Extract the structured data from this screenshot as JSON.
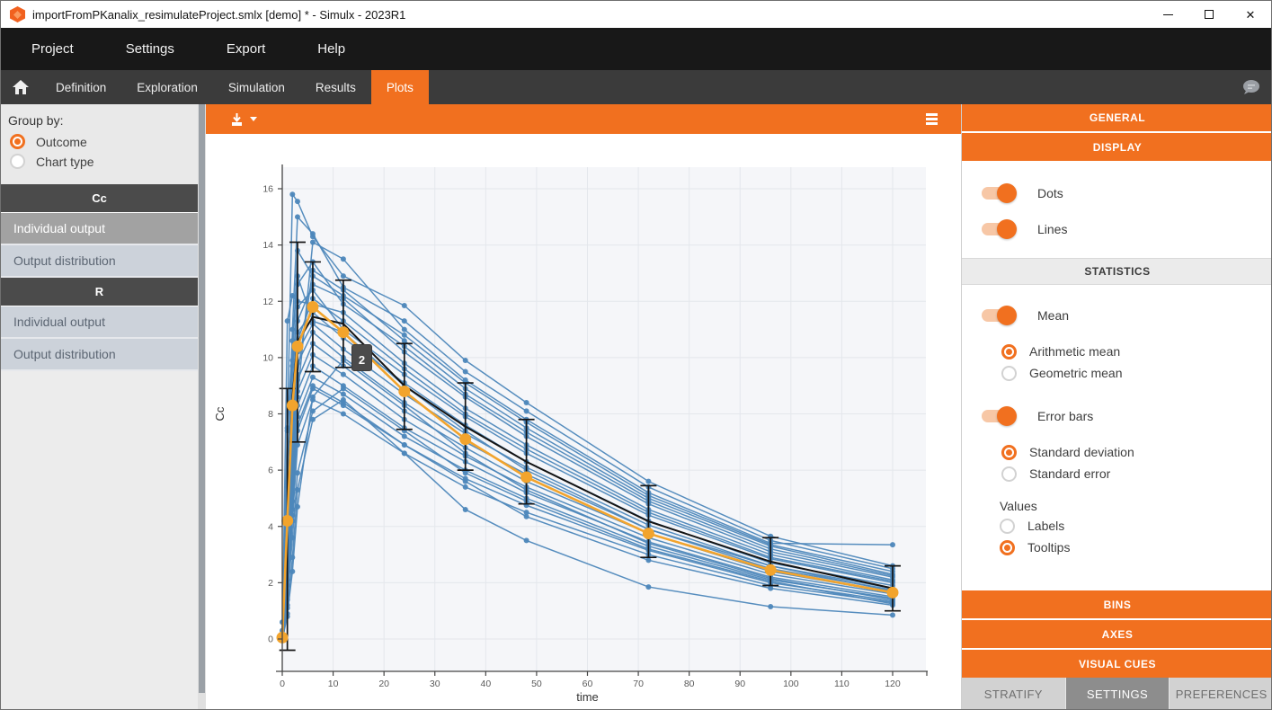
{
  "window": {
    "title": "importFromPKanalix_resimulateProject.smlx [demo] * - Simulx - 2023R1"
  },
  "menu": {
    "items": [
      {
        "label": "Project"
      },
      {
        "label": "Settings"
      },
      {
        "label": "Export"
      },
      {
        "label": "Help"
      }
    ]
  },
  "nav": {
    "tabs": [
      {
        "label": "Definition"
      },
      {
        "label": "Exploration"
      },
      {
        "label": "Simulation"
      },
      {
        "label": "Results"
      },
      {
        "label": "Plots",
        "active": true
      }
    ]
  },
  "left_sidebar": {
    "group_by": {
      "label": "Group by:",
      "options": [
        {
          "label": "Outcome",
          "selected": true
        },
        {
          "label": "Chart type",
          "selected": false
        }
      ]
    },
    "sections": [
      {
        "header": "Cc",
        "items": [
          {
            "label": "Individual output",
            "selected": true
          },
          {
            "label": "Output distribution",
            "selected": false
          }
        ]
      },
      {
        "header": "R",
        "items": [
          {
            "label": "Individual output",
            "selected": false
          },
          {
            "label": "Output distribution",
            "selected": false
          }
        ]
      }
    ]
  },
  "chart_data": {
    "type": "line",
    "title": "",
    "xlabel": "time",
    "ylabel": "Cc",
    "xlim": [
      -4.5,
      127
    ],
    "ylim": [
      -1.15,
      16.8
    ],
    "x_ticks": [
      0,
      10,
      20,
      30,
      40,
      50,
      60,
      70,
      80,
      90,
      100,
      110,
      120
    ],
    "y_ticks": [
      0,
      2,
      4,
      6,
      8,
      10,
      12,
      14,
      16
    ],
    "grid": true,
    "legend": "none",
    "times": [
      0,
      1,
      2,
      3,
      6,
      12,
      24,
      36,
      48,
      72,
      96,
      120
    ],
    "individuals": [
      [
        0,
        7.5,
        15.8,
        15.55,
        14.3,
        12.9,
        11.85,
        9.9,
        8.4,
        5.6,
        3.65,
        2.6
      ],
      [
        0,
        5.5,
        11.0,
        15.0,
        14.4,
        12.5,
        11.3,
        9.5,
        8.1,
        5.4,
        3.5,
        2.5
      ],
      [
        0,
        1.1,
        4.6,
        8.6,
        14.1,
        13.5,
        11.0,
        9.2,
        7.8,
        5.2,
        3.4,
        3.35
      ],
      [
        0,
        2.3,
        6.0,
        9.4,
        13.1,
        12.4,
        10.6,
        8.9,
        7.5,
        5.0,
        3.3,
        2.3
      ],
      [
        0,
        4.6,
        8.4,
        11.3,
        12.6,
        12.1,
        10.2,
        8.6,
        7.2,
        4.8,
        3.1,
        2.2
      ],
      [
        0,
        11.3,
        12.2,
        12.0,
        11.9,
        11.6,
        9.8,
        8.2,
        6.9,
        4.6,
        3.0,
        2.1
      ],
      [
        0,
        5.6,
        9.7,
        11.8,
        12.4,
        11.0,
        9.4,
        7.9,
        6.6,
        4.4,
        2.85,
        2.0
      ],
      [
        0.3,
        3.9,
        7.8,
        10.9,
        11.6,
        10.7,
        9.1,
        7.6,
        6.3,
        4.2,
        2.7,
        1.9
      ],
      [
        0,
        2.6,
        6.6,
        10.2,
        11.2,
        10.3,
        8.7,
        7.3,
        6.1,
        4.05,
        2.6,
        1.8
      ],
      [
        0,
        5.1,
        8.0,
        9.8,
        10.9,
        10.0,
        8.4,
        7.0,
        5.85,
        3.9,
        2.5,
        1.75
      ],
      [
        0,
        1.6,
        5.2,
        9.2,
        10.5,
        9.7,
        8.1,
        6.8,
        5.6,
        3.75,
        2.4,
        1.65
      ],
      [
        0,
        3.4,
        6.8,
        8.8,
        10.1,
        9.4,
        7.8,
        6.5,
        5.4,
        3.6,
        2.3,
        1.6
      ],
      [
        0,
        1.2,
        4.4,
        8.3,
        9.7,
        9.0,
        7.5,
        6.3,
        5.2,
        3.45,
        2.2,
        1.5
      ],
      [
        0,
        2.9,
        5.9,
        7.9,
        9.3,
        8.7,
        7.2,
        6.0,
        5.0,
        3.3,
        2.1,
        1.45
      ],
      [
        0,
        7.4,
        10.6,
        12.9,
        11.3,
        10.9,
        9.0,
        7.4,
        6.0,
        3.9,
        2.6,
        1.7
      ],
      [
        0.6,
        0.9,
        2.4,
        4.7,
        8.6,
        9.9,
        8.3,
        6.6,
        5.3,
        3.4,
        2.15,
        1.4
      ],
      [
        0,
        2.1,
        4.9,
        7.4,
        8.9,
        8.3,
        6.9,
        5.7,
        4.75,
        3.15,
        2.0,
        1.35
      ],
      [
        0,
        4.3,
        8.8,
        12.6,
        13.4,
        11.9,
        10.4,
        8.7,
        7.35,
        4.9,
        3.2,
        2.25
      ],
      [
        0,
        1.9,
        4.2,
        6.9,
        8.5,
        8.0,
        6.6,
        5.4,
        4.5,
        3.0,
        1.9,
        1.3
      ],
      [
        0,
        3.1,
        7.2,
        10.6,
        12.1,
        11.3,
        9.6,
        8.0,
        6.75,
        4.5,
        2.9,
        2.05
      ],
      [
        0,
        1.4,
        3.6,
        5.9,
        8.1,
        8.9,
        7.4,
        5.9,
        4.9,
        3.2,
        2.05,
        1.25
      ],
      [
        0,
        5.4,
        9.9,
        13.8,
        12.9,
        12.2,
        10.8,
        9.1,
        7.7,
        5.1,
        3.35,
        2.4
      ],
      [
        0,
        0.8,
        2.9,
        5.3,
        7.8,
        8.5,
        6.6,
        4.6,
        3.5,
        1.85,
        1.15,
        0.85
      ],
      [
        0,
        2.4,
        5.5,
        7.6,
        9.0,
        8.4,
        6.9,
        5.6,
        4.35,
        2.8,
        1.8,
        1.2
      ]
    ],
    "mean_series": {
      "name": "Arithmetic mean",
      "values": [
        0.05,
        4.25,
        8.6,
        10.55,
        11.45,
        11.2,
        9.0,
        7.55,
        6.3,
        4.18,
        2.75,
        1.8
      ]
    },
    "highlight_series": {
      "name": "Mean (dots)",
      "values": [
        0.05,
        4.2,
        8.3,
        10.4,
        11.8,
        10.9,
        8.8,
        7.1,
        5.75,
        3.75,
        2.45,
        1.65
      ]
    },
    "error_bars": {
      "type": "Standard deviation",
      "x": [
        1,
        3,
        6,
        12,
        24,
        36,
        48,
        72,
        96,
        120
      ],
      "low": [
        -0.4,
        7.0,
        9.5,
        9.65,
        7.45,
        6.0,
        4.8,
        2.9,
        1.9,
        1.0
      ],
      "high": [
        8.9,
        14.1,
        13.4,
        12.75,
        10.5,
        9.1,
        7.8,
        5.45,
        3.6,
        2.6
      ]
    },
    "colors": {
      "individual": "#4D87BA",
      "mean": "#141414",
      "highlight": "#F2A42D",
      "grid": "#E4E7EC",
      "plot_bg": "#F5F6F9",
      "axis": "#454545",
      "tick_text": "#5A5A5A"
    },
    "tooltip": {
      "text": "2"
    }
  },
  "right_panel": {
    "section_general": "GENERAL",
    "section_display": "DISPLAY",
    "display": {
      "toggles": [
        {
          "label": "Dots",
          "on": true
        },
        {
          "label": "Lines",
          "on": true
        }
      ]
    },
    "statistics": {
      "header": "STATISTICS",
      "mean_toggle": {
        "label": "Mean",
        "on": true
      },
      "mean_type": [
        {
          "label": "Arithmetic mean",
          "selected": true
        },
        {
          "label": "Geometric mean",
          "selected": false
        }
      ],
      "error_toggle": {
        "label": "Error bars",
        "on": true
      },
      "error_type": [
        {
          "label": "Standard deviation",
          "selected": true
        },
        {
          "label": "Standard error",
          "selected": false
        }
      ],
      "values_label": "Values",
      "values_options": [
        {
          "label": "Labels",
          "selected": false
        },
        {
          "label": "Tooltips",
          "selected": true
        }
      ]
    },
    "buttons": [
      {
        "label": "BINS"
      },
      {
        "label": "AXES"
      },
      {
        "label": "VISUAL CUES"
      }
    ],
    "bottom_tabs": [
      {
        "label": "STRATIFY",
        "active": false
      },
      {
        "label": "SETTINGS",
        "active": true
      },
      {
        "label": "PREFERENCES",
        "active": false
      }
    ]
  }
}
